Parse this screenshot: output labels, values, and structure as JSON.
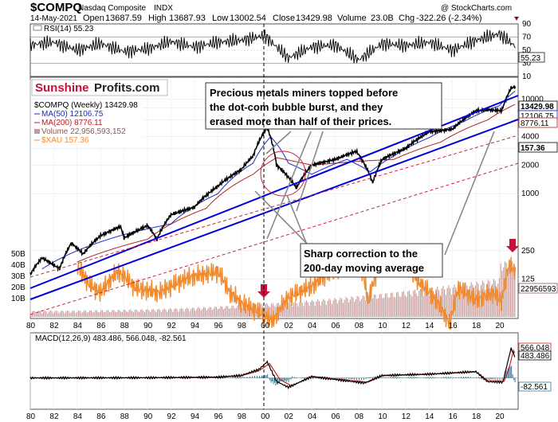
{
  "header": {
    "symbol": "$COMPQ",
    "name": "Nasdaq Composite",
    "exchange": "INDX",
    "date": "14-May-2021",
    "open_label": "Open",
    "open": "13687.59",
    "high_label": "High",
    "high": "13687.93",
    "low_label": "Low",
    "low": "13002.54",
    "close_label": "Close",
    "close": "13429.98",
    "volume_label": "Volume",
    "volume": "23.0B",
    "chg_label": "Chg",
    "chg": "-322.26 (-2.34%)",
    "watermark": "@ StockCharts.com"
  },
  "logo": {
    "part1": "Sunshine",
    "part2": "Profits.com"
  },
  "colors": {
    "nasdaq": "#000000",
    "ma50": "#1a2bc8",
    "ma200": "#b22222",
    "volume": "#c69a9a",
    "xau": "#f28a2e",
    "channel": "#0000dd",
    "redline": "#cc2244",
    "macd": "#000000",
    "signal": "#cc2222",
    "hist": "#2e7a9a",
    "arrow": "#c8103c"
  },
  "annotations": {
    "miners": [
      "Precious metals miners topped before",
      "the dot-com bubble burst, and they",
      "erased more than half of their prices."
    ],
    "correction": [
      "Sharp correction to the",
      "200-day moving average"
    ]
  },
  "chart_data": [
    {
      "type": "line",
      "panel": "RSI",
      "legend": "RSI(14) 55.23",
      "last_value": "55.23",
      "y_ticks": [
        "90",
        "70",
        "50",
        "30",
        "10"
      ],
      "ylim": [
        10,
        90
      ],
      "series": [
        {
          "name": "RSI(14)",
          "x": [
            1980,
            1982,
            1984,
            1986,
            1988,
            1990,
            1992,
            1994,
            1996,
            1998,
            2000,
            2002,
            2004,
            2006,
            2008,
            2010,
            2012,
            2014,
            2016,
            2018,
            2020,
            2021.4
          ],
          "values": [
            58,
            62,
            50,
            60,
            48,
            52,
            63,
            55,
            62,
            65,
            72,
            38,
            55,
            58,
            35,
            60,
            57,
            62,
            50,
            65,
            75,
            55.23
          ]
        }
      ]
    },
    {
      "type": "line",
      "panel": "price",
      "log_scale": true,
      "legend": [
        "$COMPQ (Weekly) 13429.98",
        "MA(50) 12106.75",
        "MA(200) 8776.11",
        "Volume 22,956,593,152",
        "$XAU 157.36"
      ],
      "right_labels": [
        "13429.98",
        "12106.75",
        "8776.11",
        "157.36",
        "22956593"
      ],
      "y_ticks": [
        "10000",
        "8000",
        "6000",
        "4000",
        "3000",
        "2000",
        "1000",
        "250",
        "125"
      ],
      "volume_ticks": [
        "50B",
        "40B",
        "30B",
        "20B",
        "10B"
      ],
      "x_ticks": [
        "80",
        "82",
        "84",
        "86",
        "88",
        "90",
        "92",
        "94",
        "96",
        "98",
        "00",
        "02",
        "04",
        "06",
        "08",
        "10",
        "12",
        "14",
        "16",
        "18",
        "20"
      ],
      "x_range": [
        1980,
        2021.6
      ],
      "series": [
        {
          "name": "$COMPQ (Weekly)",
          "x": [
            1980,
            1981,
            1982.5,
            1983.5,
            1984.5,
            1986,
            1987.7,
            1988,
            1990,
            1990.8,
            1992,
            1994,
            1996,
            1998,
            1999,
            2000.2,
            2001,
            2002.7,
            2004,
            2006,
            2007.8,
            2009.2,
            2010,
            2012,
            2014,
            2016,
            2018,
            2019,
            2020.2,
            2021,
            2021.35
          ],
          "values": [
            140,
            210,
            160,
            300,
            230,
            360,
            450,
            340,
            460,
            330,
            600,
            720,
            1200,
            1800,
            2500,
            5000,
            2000,
            1150,
            2000,
            2300,
            2800,
            1300,
            2300,
            3000,
            4500,
            4800,
            7500,
            7700,
            7500,
            13000,
            13430
          ]
        },
        {
          "name": "MA(50)",
          "x": [
            1981,
            1984,
            1988,
            1992,
            1996,
            1999,
            2000.5,
            2002,
            2004,
            2007,
            2009,
            2011,
            2014,
            2017,
            2020,
            2021.35
          ],
          "values": [
            160,
            250,
            370,
            480,
            1000,
            2100,
            4000,
            2100,
            1600,
            2300,
            1700,
            2500,
            3900,
            5800,
            8500,
            12106.75
          ]
        },
        {
          "name": "MA(200)",
          "x": [
            1984,
            1990,
            1995,
            1999,
            2001,
            2004,
            2008,
            2011,
            2015,
            2019,
            2021.35
          ],
          "values": [
            190,
            330,
            700,
            1600,
            2400,
            2000,
            2200,
            2300,
            3500,
            6000,
            8776.11
          ]
        },
        {
          "name": "$XAU",
          "x": [
            1984,
            1985,
            1986,
            1987.5,
            1989,
            1991,
            1993.5,
            1996,
            1997,
            1998,
            2000.7,
            2002,
            2004,
            2006,
            2008,
            2008.8,
            2010,
            2011.3,
            2013,
            2015.8,
            2016.5,
            2018,
            2019.5,
            2020.2,
            2020.8,
            2021.35
          ],
          "values": [
            170,
            110,
            90,
            150,
            100,
            90,
            130,
            150,
            90,
            70,
            45,
            80,
            105,
            160,
            200,
            70,
            190,
            230,
            120,
            40,
            100,
            75,
            90,
            70,
            170,
            157.36
          ]
        }
      ]
    },
    {
      "type": "line",
      "panel": "MACD",
      "legend": "MACD(12,26,9) 483.486, 566.048, -82.561",
      "values_text": {
        "macd": "483.486",
        "signal": "566.048",
        "hist": "-82.561"
      },
      "x_ticks": [
        "80",
        "82",
        "84",
        "86",
        "88",
        "90",
        "92",
        "94",
        "96",
        "98",
        "00",
        "02",
        "04",
        "06",
        "08",
        "10",
        "12",
        "14",
        "16",
        "18",
        "20"
      ],
      "ylim": [
        -700,
        800
      ],
      "series": [
        {
          "name": "MACD",
          "x": [
            1980,
            1990,
            1996,
            1998,
            1999.5,
            2000.2,
            2001,
            2002,
            2004,
            2008.5,
            2010,
            2014,
            2018,
            2019,
            2020.3,
            2020.6,
            2021,
            2021.35
          ],
          "values": [
            0,
            5,
            20,
            60,
            200,
            380,
            -80,
            -220,
            30,
            -120,
            60,
            90,
            150,
            -90,
            -100,
            250,
            700,
            483.486
          ]
        },
        {
          "name": "Signal",
          "x": [
            1980,
            1990,
            1996,
            1998,
            1999.5,
            2000.4,
            2001.3,
            2002.3,
            2004,
            2008.8,
            2010,
            2014,
            2018,
            2019,
            2020.4,
            2020.8,
            2021.2,
            2021.35
          ],
          "values": [
            0,
            5,
            15,
            50,
            170,
            340,
            -40,
            -190,
            40,
            -100,
            50,
            85,
            140,
            -60,
            -80,
            200,
            650,
            566.048
          ]
        }
      ]
    }
  ]
}
